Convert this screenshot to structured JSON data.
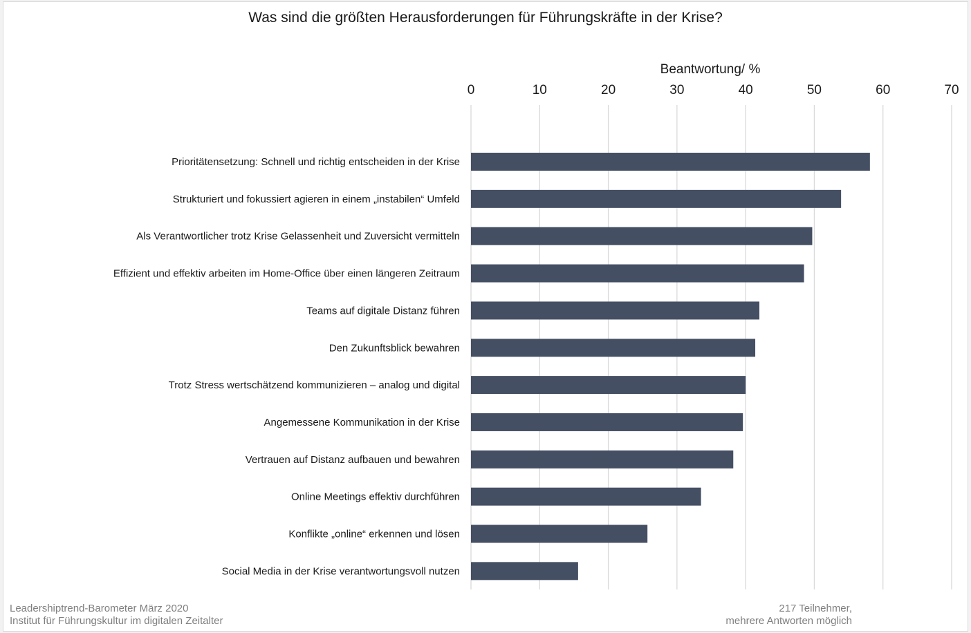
{
  "chart_data": {
    "type": "bar",
    "orientation": "horizontal",
    "title": "Was sind die größten Herausforderungen für Führungskräfte in der Krise?",
    "xlabel": "Beantwortung/ %",
    "xlim": [
      0,
      70
    ],
    "x_ticks": [
      "0",
      "10",
      "20",
      "30",
      "40",
      "50",
      "60",
      "70"
    ],
    "grid": true,
    "bar_color": "#444f63",
    "categories": [
      "Prioritätensetzung: Schnell und richtig entscheiden in der Krise",
      "Strukturiert und fokussiert agieren in einem „instabilen“ Umfeld",
      "Als Verantwortlicher trotz Krise Gelassenheit und Zuversicht vermitteln",
      "Effizient und effektiv arbeiten im Home-Office über einen längeren Zeitraum",
      "Teams auf digitale Distanz führen",
      "Den Zukunftsblick bewahren",
      "Trotz Stress wertschätzend kommunizieren – analog und digital",
      "Angemessene Kommunikation in der Krise",
      "Vertrauen auf Distanz aufbauen und bewahren",
      "Online Meetings effektiv durchführen",
      "Konflikte „online“ erkennen und lösen",
      "Social Media in der Krise verantwortungsvoll nutzen"
    ],
    "values": [
      58.1,
      53.9,
      49.7,
      48.5,
      42.0,
      41.4,
      40.0,
      39.6,
      38.2,
      33.5,
      25.7,
      15.6
    ]
  },
  "footer": {
    "source_line1": "Leadershiptrend-Barometer März 2020",
    "source_line2": "Institut für Führungskultur im digitalen Zeitalter",
    "note_line1": "217 Teilnehmer,",
    "note_line2": "mehrere Antworten möglich"
  }
}
